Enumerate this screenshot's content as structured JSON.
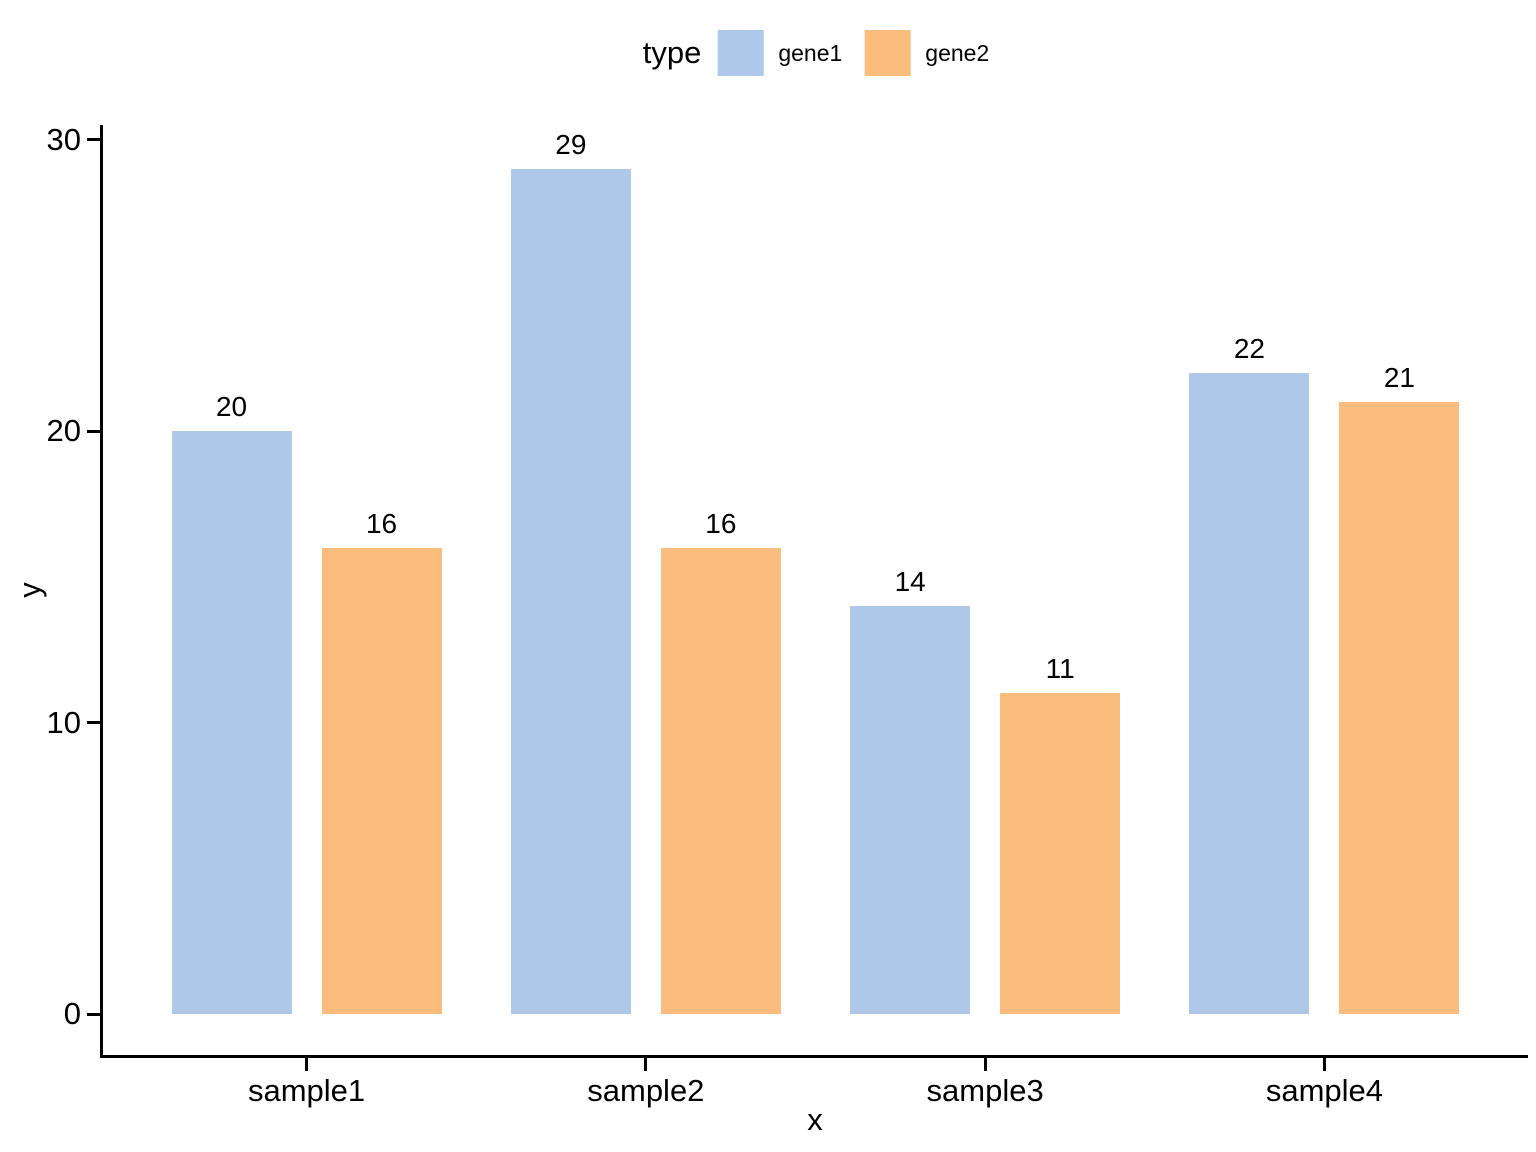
{
  "chart_data": {
    "type": "bar",
    "title": "",
    "xlabel": "x",
    "ylabel": "y",
    "categories": [
      "sample1",
      "sample2",
      "sample3",
      "sample4"
    ],
    "series": [
      {
        "name": "gene1",
        "color": "#AFC7E8",
        "values": [
          20,
          29,
          14,
          22
        ]
      },
      {
        "name": "gene2",
        "color": "#FBBD7D",
        "values": [
          16,
          16,
          11,
          21
        ]
      }
    ],
    "yticks": [
      0,
      10,
      20,
      30
    ],
    "ylim": [
      0,
      30
    ],
    "bar_value_labels": true,
    "grid": false,
    "legend": {
      "title": "type",
      "position": "top"
    },
    "colors": {
      "axis": "#000000",
      "text": "#000000",
      "background": "#ffffff"
    }
  }
}
